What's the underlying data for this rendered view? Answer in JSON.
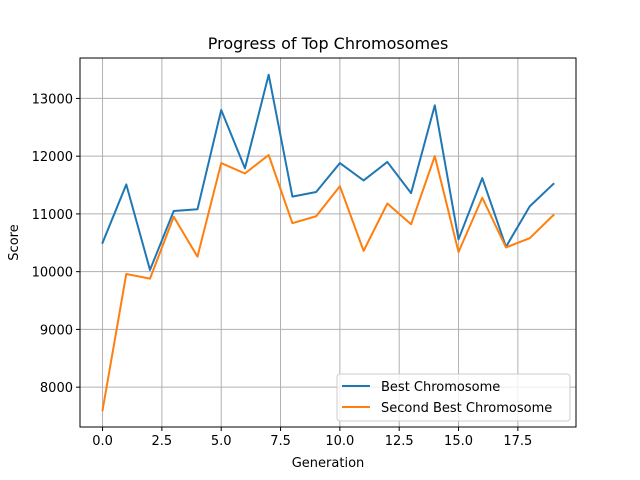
{
  "chart_data": {
    "type": "line",
    "title": "Progress of Top Chromosomes",
    "xlabel": "Generation",
    "ylabel": "Score",
    "x": [
      0,
      1,
      2,
      3,
      4,
      5,
      6,
      7,
      8,
      9,
      10,
      11,
      12,
      13,
      14,
      15,
      16,
      17,
      18,
      19
    ],
    "xlim": [
      -0.95,
      19.95
    ],
    "ylim": [
      7310,
      13700
    ],
    "xticks": [
      0.0,
      2.5,
      5.0,
      7.5,
      10.0,
      12.5,
      15.0,
      17.5
    ],
    "xtick_labels": [
      "0.0",
      "2.5",
      "5.0",
      "7.5",
      "10.0",
      "12.5",
      "15.0",
      "17.5"
    ],
    "yticks": [
      8000,
      9000,
      10000,
      11000,
      12000,
      13000
    ],
    "ytick_labels": [
      "8000",
      "9000",
      "10000",
      "11000",
      "12000",
      "13000"
    ],
    "grid": true,
    "legend_position": "lower-right",
    "series": [
      {
        "name": "Best Chromosome",
        "color": "#1f77b4",
        "values": [
          10500,
          11510,
          10030,
          11050,
          11080,
          12800,
          11790,
          13410,
          11300,
          11380,
          11880,
          11580,
          11900,
          11360,
          12880,
          10560,
          11620,
          10430,
          11130,
          11520
        ]
      },
      {
        "name": "Second Best Chromosome",
        "color": "#ff7f0e",
        "values": [
          7600,
          9960,
          9880,
          10950,
          10260,
          11880,
          11700,
          12020,
          10840,
          10960,
          11480,
          10360,
          11180,
          10820,
          12000,
          10340,
          11280,
          10420,
          10580,
          10980
        ]
      }
    ]
  }
}
